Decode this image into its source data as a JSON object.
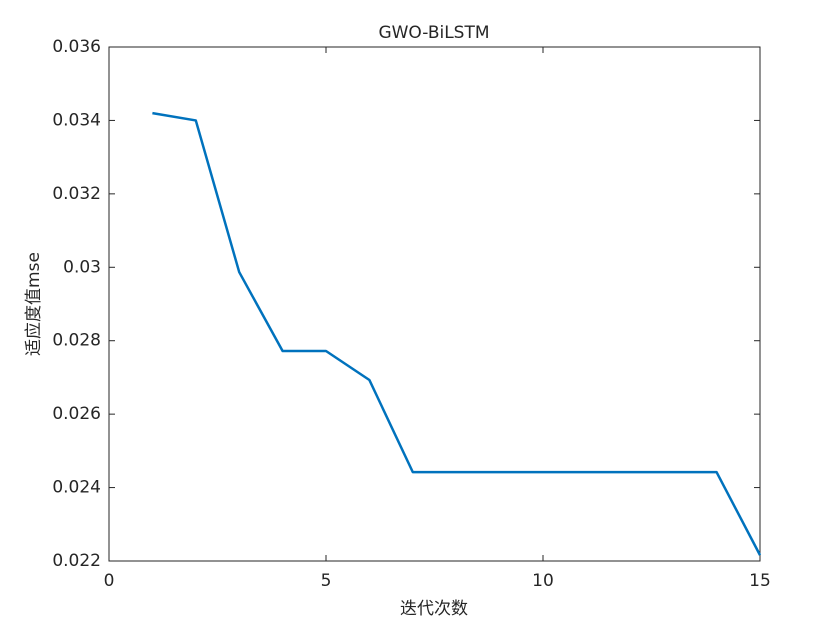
{
  "chart_data": {
    "type": "line",
    "title": "GWO-BiLSTM",
    "x_label": "迭代次数",
    "y_label": "适应度值mse",
    "x": [
      1,
      2,
      3,
      4,
      5,
      6,
      7,
      8,
      9,
      10,
      11,
      12,
      13,
      14,
      15
    ],
    "series": [
      {
        "name": "GWO-BiLSTM",
        "color": "#0072bd",
        "values": [
          0.0342,
          0.034,
          0.02987,
          0.02772,
          0.02772,
          0.02693,
          0.02442,
          0.02442,
          0.02442,
          0.02442,
          0.02442,
          0.02442,
          0.02442,
          0.02442,
          0.02216
        ]
      }
    ],
    "xlim": [
      0,
      15
    ],
    "xticks": [
      0,
      5,
      10,
      15
    ],
    "ylim": [
      0.022,
      0.036
    ],
    "yticks": [
      0.022,
      0.024,
      0.026,
      0.028,
      0.03,
      0.032,
      0.034,
      0.036
    ],
    "grid": false
  }
}
